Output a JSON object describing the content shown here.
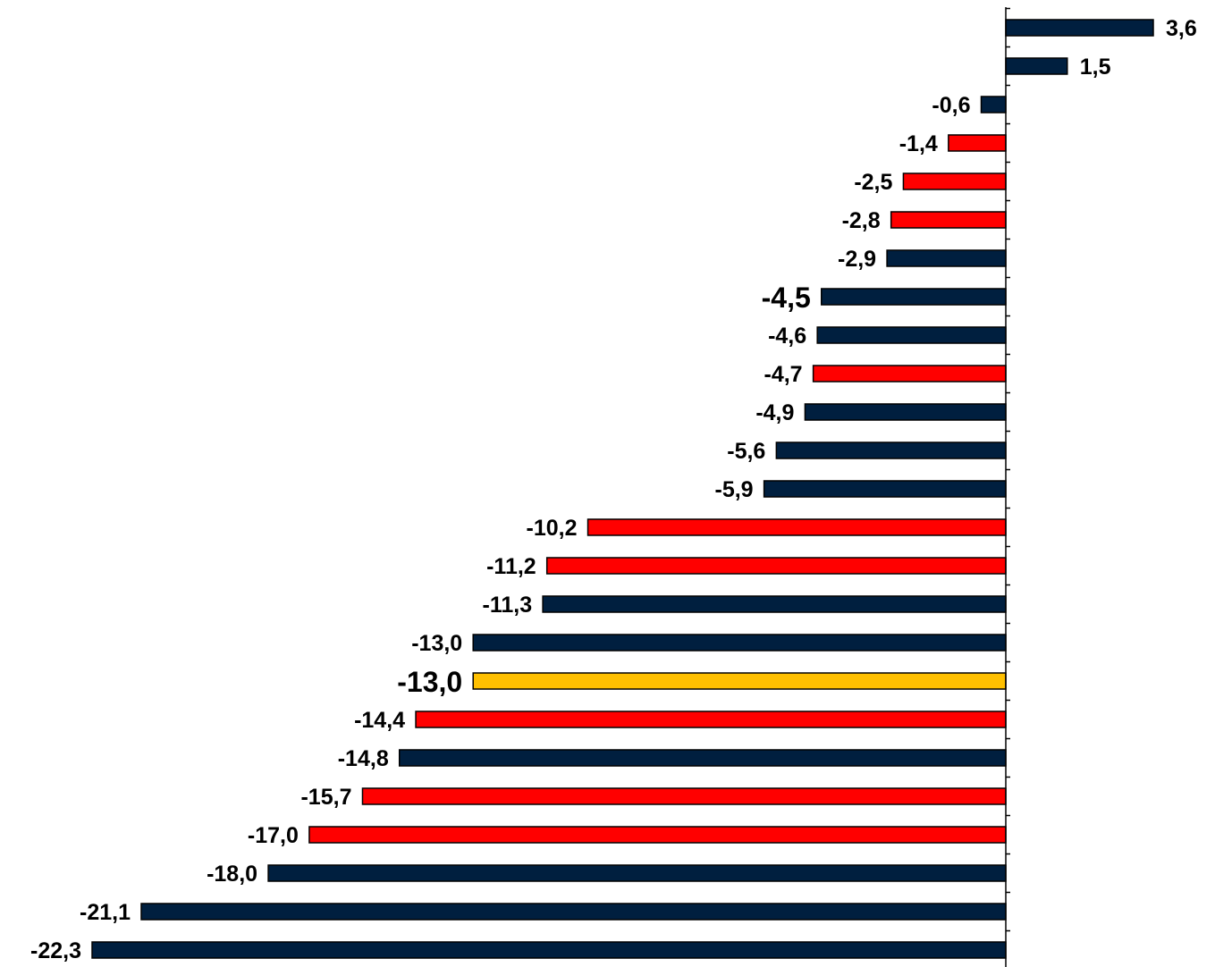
{
  "chart_data": {
    "type": "bar",
    "orientation": "horizontal",
    "title": "",
    "xlabel": "",
    "ylabel": "",
    "categories": [],
    "values": [
      3.6,
      1.5,
      -0.6,
      -1.4,
      -2.5,
      -2.8,
      -2.9,
      -4.5,
      -4.6,
      -4.7,
      -4.9,
      -5.6,
      -5.9,
      -10.2,
      -11.2,
      -11.3,
      -13.0,
      -13.0,
      -14.4,
      -14.8,
      -15.7,
      -17.0,
      -18.0,
      -21.1,
      -22.3
    ],
    "labels": [
      "3,6",
      "1,5",
      "-0,6",
      "-1,4",
      "-2,5",
      "-2,8",
      "-2,9",
      "-4,5",
      "-4,6",
      "-4,7",
      "-4,9",
      "-5,6",
      "-5,9",
      "-10,2",
      "-11,2",
      "-11,3",
      "-13,0",
      "-13,0",
      "-14,4",
      "-14,8",
      "-15,7",
      "-17,0",
      "-18,0",
      "-21,1",
      "-22,3"
    ],
    "bar_colors": [
      "navy",
      "navy",
      "navy",
      "red",
      "red",
      "red",
      "navy",
      "navy",
      "navy",
      "red",
      "navy",
      "navy",
      "navy",
      "red",
      "red",
      "navy",
      "navy",
      "gold",
      "red",
      "navy",
      "red",
      "red",
      "navy",
      "navy",
      "navy"
    ],
    "emphasized": [
      7,
      17
    ],
    "palette": {
      "navy": "#001f3f",
      "red": "#ff0000",
      "gold": "#ffc000"
    },
    "xlim": [
      -22.3,
      3.6
    ],
    "grid": false,
    "legend": "none"
  }
}
